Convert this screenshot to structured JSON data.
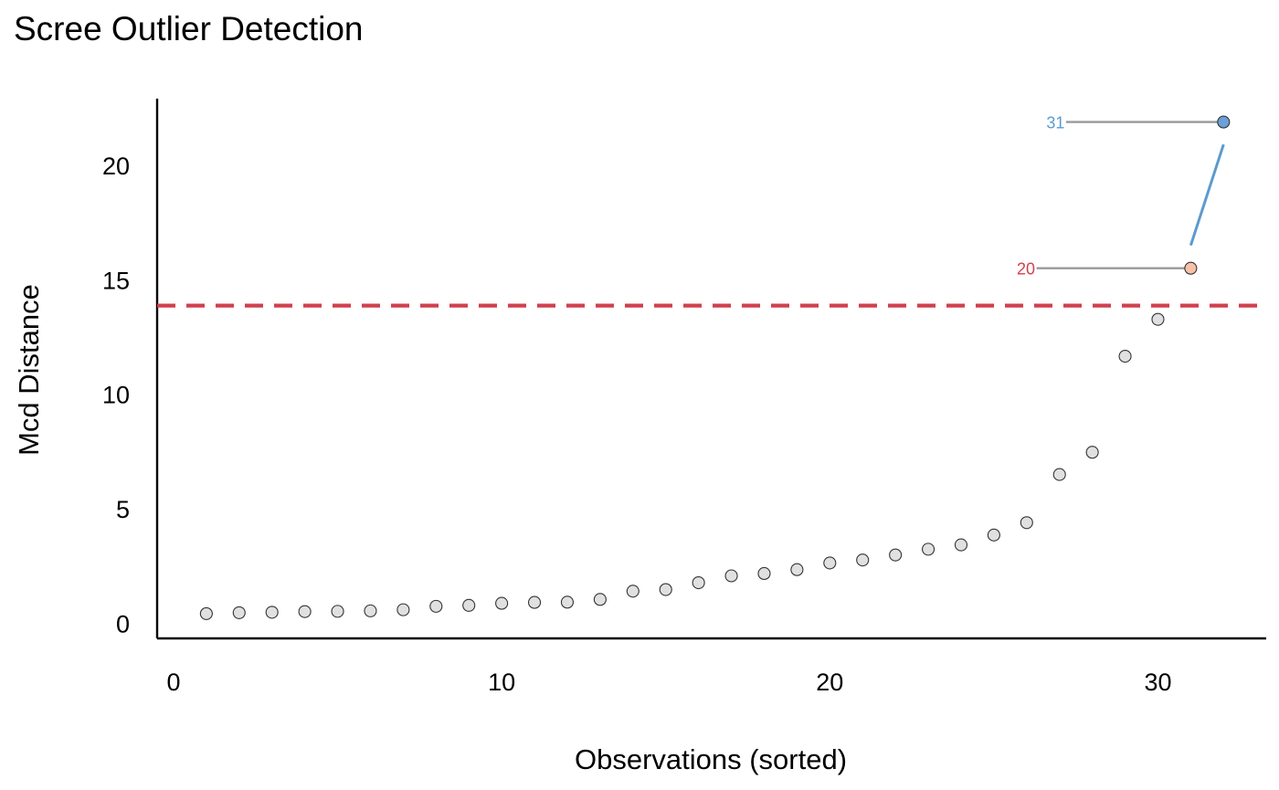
{
  "chart_data": {
    "type": "scatter",
    "title": "Scree Outlier Detection",
    "xlabel": "Observations (sorted)",
    "ylabel": "Mcd Distance",
    "xlim": [
      -0.5,
      33.3
    ],
    "ylim": [
      -0.65,
      22.9
    ],
    "xticks": [
      0,
      10,
      20,
      30
    ],
    "yticks": [
      0,
      5,
      10,
      15,
      20
    ],
    "threshold": 13.87,
    "colors": {
      "point_fill": "#e0e0e0",
      "point_stroke": "#333333",
      "threshold_line": "#d1404e",
      "outlier_high_fill": "#6a9fd9",
      "outlier_mid_fill": "#f7c1a8",
      "label_high": "#5b9bd0",
      "label_mid": "#d1404e",
      "leader_line": "#999999",
      "connector": "#5b9bd0"
    },
    "points": [
      {
        "x": 1,
        "y": 0.43
      },
      {
        "x": 2,
        "y": 0.47
      },
      {
        "x": 3,
        "y": 0.49
      },
      {
        "x": 4,
        "y": 0.52
      },
      {
        "x": 5,
        "y": 0.53
      },
      {
        "x": 6,
        "y": 0.55
      },
      {
        "x": 7,
        "y": 0.6
      },
      {
        "x": 8,
        "y": 0.75
      },
      {
        "x": 9,
        "y": 0.79
      },
      {
        "x": 10,
        "y": 0.88
      },
      {
        "x": 11,
        "y": 0.92
      },
      {
        "x": 12,
        "y": 0.93
      },
      {
        "x": 13,
        "y": 1.05
      },
      {
        "x": 14,
        "y": 1.41
      },
      {
        "x": 15,
        "y": 1.48
      },
      {
        "x": 16,
        "y": 1.78
      },
      {
        "x": 17,
        "y": 2.08
      },
      {
        "x": 18,
        "y": 2.18
      },
      {
        "x": 19,
        "y": 2.35
      },
      {
        "x": 20,
        "y": 2.64
      },
      {
        "x": 21,
        "y": 2.77
      },
      {
        "x": 22,
        "y": 2.99
      },
      {
        "x": 23,
        "y": 3.24
      },
      {
        "x": 24,
        "y": 3.43
      },
      {
        "x": 25,
        "y": 3.86
      },
      {
        "x": 26,
        "y": 4.4
      },
      {
        "x": 27,
        "y": 6.5
      },
      {
        "x": 28,
        "y": 7.47
      },
      {
        "x": 29,
        "y": 11.66
      },
      {
        "x": 30,
        "y": 13.27
      },
      {
        "x": 31,
        "y": 15.5,
        "label": "20",
        "kind": "mid"
      },
      {
        "x": 32,
        "y": 21.88,
        "label": "31",
        "kind": "high"
      }
    ],
    "connector": {
      "from": {
        "x": 31,
        "y": 16.5
      },
      "to": {
        "x": 32,
        "y": 20.9
      }
    },
    "label_positions": {
      "20": 25.7,
      "31": 26.6
    },
    "leader_starts": {
      "20": 26.3,
      "31": 27.2
    }
  }
}
